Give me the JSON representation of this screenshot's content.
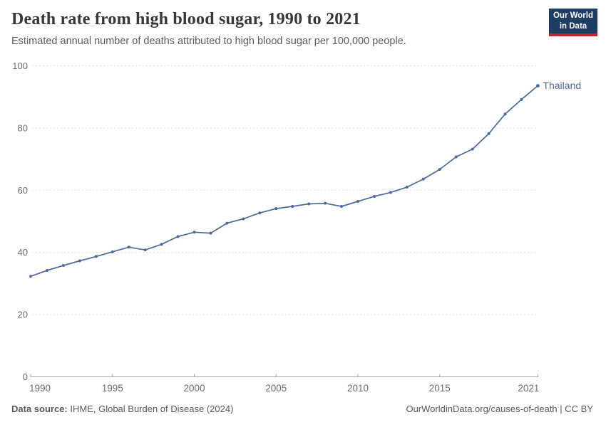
{
  "header": {
    "title": "Death rate from high blood sugar, 1990 to 2021",
    "subtitle": "Estimated annual number of deaths attributed to high blood sugar per 100,000 people.",
    "logo": {
      "line1": "Our World",
      "line2": "in Data"
    }
  },
  "chart_data": {
    "type": "line",
    "title": "Death rate from high blood sugar, 1990 to 2021",
    "entity_label": "Thailand",
    "x": [
      1990,
      1991,
      1992,
      1993,
      1994,
      1995,
      1996,
      1997,
      1998,
      1999,
      2000,
      2001,
      2002,
      2003,
      2004,
      2005,
      2006,
      2007,
      2008,
      2009,
      2010,
      2011,
      2012,
      2013,
      2014,
      2015,
      2016,
      2017,
      2018,
      2019,
      2020,
      2021
    ],
    "series": [
      {
        "name": "Thailand",
        "values": [
          32.3,
          34.2,
          35.8,
          37.3,
          38.7,
          40.2,
          41.7,
          40.8,
          42.6,
          45.1,
          46.5,
          46.2,
          49.4,
          50.8,
          52.7,
          54.1,
          54.8,
          55.6,
          55.8,
          54.8,
          56.4,
          58.0,
          59.3,
          61.0,
          63.6,
          66.7,
          70.7,
          73.2,
          78.2,
          84.5,
          89.2,
          93.6
        ]
      }
    ],
    "xlabel": "",
    "ylabel": "",
    "ylim": [
      0,
      100
    ],
    "yticks": [
      0,
      20,
      40,
      60,
      80,
      100
    ],
    "xticks": [
      1990,
      1995,
      2000,
      2005,
      2010,
      2015,
      2021
    ],
    "grid": "horizontal-dashed",
    "legend_position": "line-end-label"
  },
  "colors": {
    "line": "#4c6a9c",
    "entity_label": "#4c6a9c",
    "grid": "#dedede",
    "axis": "#a5a5a5",
    "tick_text": "#6e6e6e",
    "logo_bg": "#1d3d63",
    "logo_stripe": "#c1242e"
  },
  "footer": {
    "source_label": "Data source:",
    "source_value": " IHME, Global Burden of Disease (2024)",
    "link": "OurWorldinData.org/causes-of-death | CC BY"
  }
}
